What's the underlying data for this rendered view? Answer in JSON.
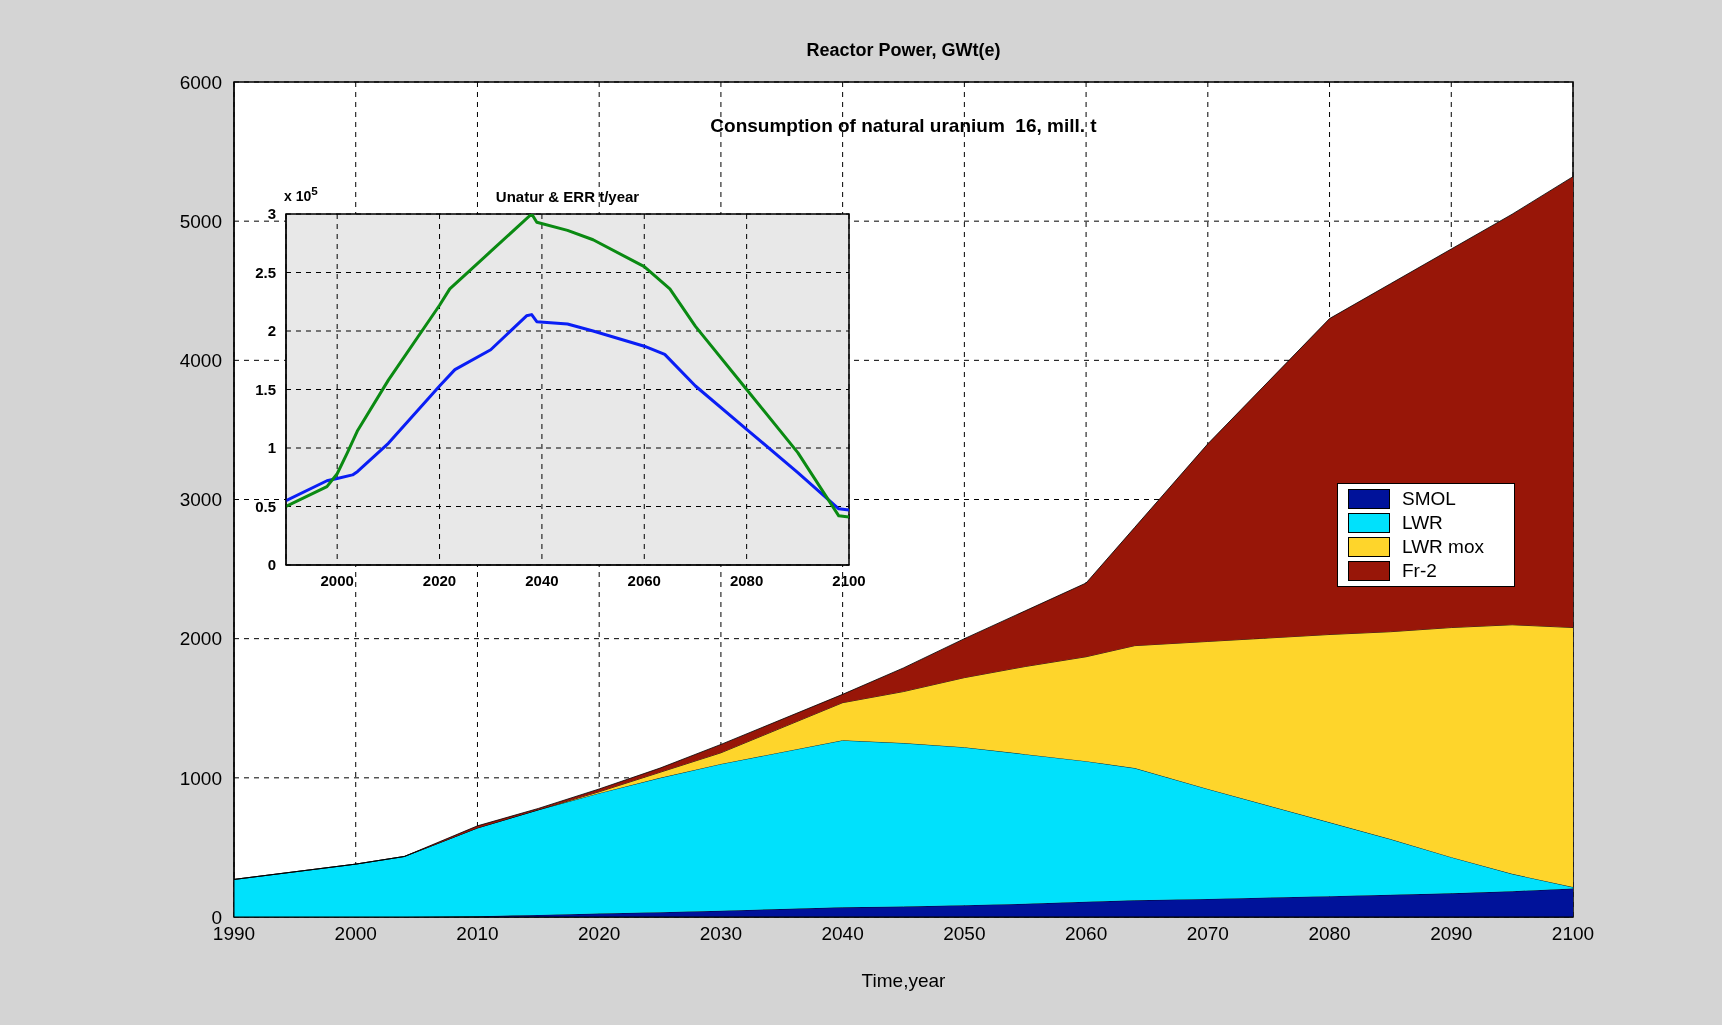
{
  "chart_data": [
    {
      "type": "area",
      "title": "Reactor Power, GWt(e)",
      "xlabel": "Time,year",
      "annotations": [
        "Consumption of natural uranium  16, mill. t"
      ],
      "stacked": true,
      "x": [
        1990,
        2000,
        2004,
        2010,
        2015,
        2020,
        2025,
        2030,
        2040,
        2045,
        2050,
        2055,
        2060,
        2064,
        2070,
        2080,
        2085,
        2090,
        2095,
        2100
      ],
      "series": [
        {
          "name": "SMOL",
          "color": "#00129a",
          "values": [
            0,
            0,
            0,
            5,
            15,
            25,
            35,
            45,
            70,
            75,
            85,
            95,
            110,
            120,
            130,
            150,
            160,
            170,
            185,
            205
          ]
        },
        {
          "name": "LWR",
          "color": "#00e1fc",
          "values": [
            270,
            380,
            435,
            635,
            755,
            865,
            965,
            1055,
            1200,
            1175,
            1135,
            1075,
            1010,
            950,
            790,
            530,
            400,
            260,
            125,
            10
          ]
        },
        {
          "name": "LWR mox",
          "color": "#fed52b",
          "values": [
            0,
            0,
            0,
            0,
            0,
            10,
            40,
            80,
            270,
            370,
            500,
            630,
            750,
            880,
            1060,
            1350,
            1490,
            1650,
            1790,
            1865
          ]
        },
        {
          "name": "Fr-2",
          "color": "#981608",
          "values": [
            0,
            0,
            0,
            15,
            10,
            20,
            30,
            60,
            60,
            170,
            280,
            400,
            530,
            850,
            1420,
            2270,
            2500,
            2720,
            2950,
            3240
          ]
        }
      ],
      "xlim": [
        1990,
        2100
      ],
      "xticks": [
        1990,
        2000,
        2010,
        2020,
        2030,
        2040,
        2050,
        2060,
        2070,
        2080,
        2090,
        2100
      ],
      "ylim": [
        0,
        6000
      ],
      "yticks": [
        0,
        1000,
        2000,
        3000,
        4000,
        5000,
        6000
      ],
      "grid": true,
      "legend": "right"
    },
    {
      "type": "line",
      "title": "Unatur & ERR t/year",
      "annotations": [
        "x 10$^{5}$"
      ],
      "series": [
        {
          "color": "#0a1ef5",
          "x": [
            1990,
            1998,
            2000,
            2003,
            2004,
            2010,
            2020,
            2023,
            2030,
            2037,
            2038,
            2039,
            2045,
            2050,
            2060,
            2064,
            2070,
            2080,
            2090,
            2098,
            2100
          ],
          "values": [
            0.55,
            0.72,
            0.74,
            0.77,
            0.8,
            1.04,
            1.53,
            1.67,
            1.84,
            2.13,
            2.14,
            2.08,
            2.06,
            2.0,
            1.87,
            1.8,
            1.53,
            1.16,
            0.79,
            0.48,
            0.47
          ]
        },
        {
          "color": "#0a8a12",
          "x": [
            1990,
            1998,
            2000,
            2002,
            2004,
            2010,
            2020,
            2022,
            2030,
            2038,
            2039,
            2045,
            2050,
            2060,
            2065,
            2070,
            2080,
            2090,
            2098,
            2100
          ],
          "values": [
            0.5,
            0.67,
            0.78,
            0.96,
            1.15,
            1.58,
            2.22,
            2.36,
            2.68,
            3.0,
            2.93,
            2.86,
            2.78,
            2.55,
            2.36,
            2.04,
            1.5,
            0.96,
            0.42,
            0.41
          ]
        }
      ],
      "xlim": [
        1990,
        2100
      ],
      "xticks": [
        2000,
        2020,
        2040,
        2060,
        2080,
        2100
      ],
      "ylim": [
        0,
        3
      ],
      "yticks": [
        0,
        0.5,
        1,
        1.5,
        2,
        2.5,
        3
      ],
      "grid": true
    }
  ]
}
